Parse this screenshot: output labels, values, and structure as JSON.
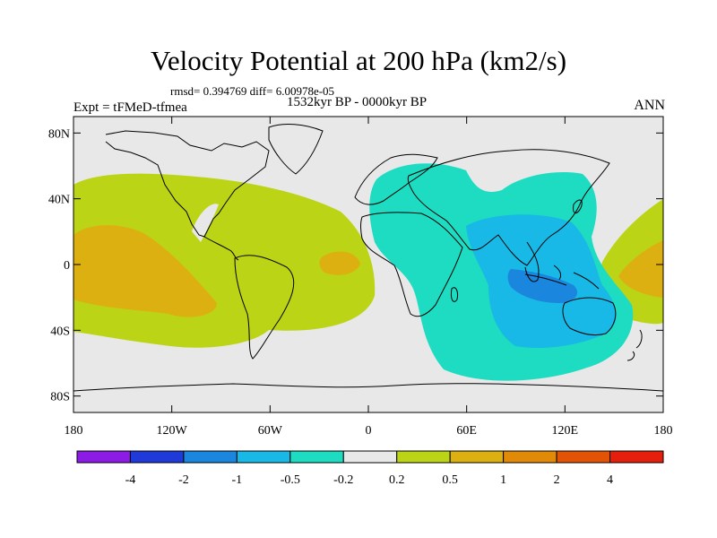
{
  "title": "Velocity Potential at 200 hPa (km2/s)",
  "stats": "rmsd= 0.394769 diff= 6.00978e-05",
  "period": "1532kyr BP - 0000kyr BP",
  "experiment": "Expt = tFMeD-tfmea",
  "season": "ANN",
  "map": {
    "projection": "cylindrical-equidistant",
    "lon_range": [
      -180,
      180
    ],
    "lat_range": [
      -90,
      90
    ],
    "lat_ticks": [
      {
        "value": 80,
        "label": "80N"
      },
      {
        "value": 40,
        "label": "40N"
      },
      {
        "value": 0,
        "label": "0"
      },
      {
        "value": -40,
        "label": "40S"
      },
      {
        "value": -80,
        "label": "80S"
      }
    ],
    "lon_ticks": [
      {
        "value": -180,
        "label": "180"
      },
      {
        "value": -120,
        "label": "120W"
      },
      {
        "value": -60,
        "label": "60W"
      },
      {
        "value": 0,
        "label": "0"
      },
      {
        "value": 60,
        "label": "60E"
      },
      {
        "value": 120,
        "label": "120E"
      },
      {
        "value": 180,
        "label": "180"
      }
    ]
  },
  "colorbar": {
    "levels": [
      "-4",
      "-2",
      "-1",
      "-0.5",
      "-0.2",
      "0.2",
      "0.5",
      "1",
      "2",
      "4"
    ],
    "colors": [
      "#8c1be6",
      "#1f3ad9",
      "#1a86dd",
      "#18b9e6",
      "#1ddcc1",
      "#e8e8e8",
      "#bcd416",
      "#dcb010",
      "#e08a08",
      "#e25306",
      "#e61f0c"
    ]
  }
}
